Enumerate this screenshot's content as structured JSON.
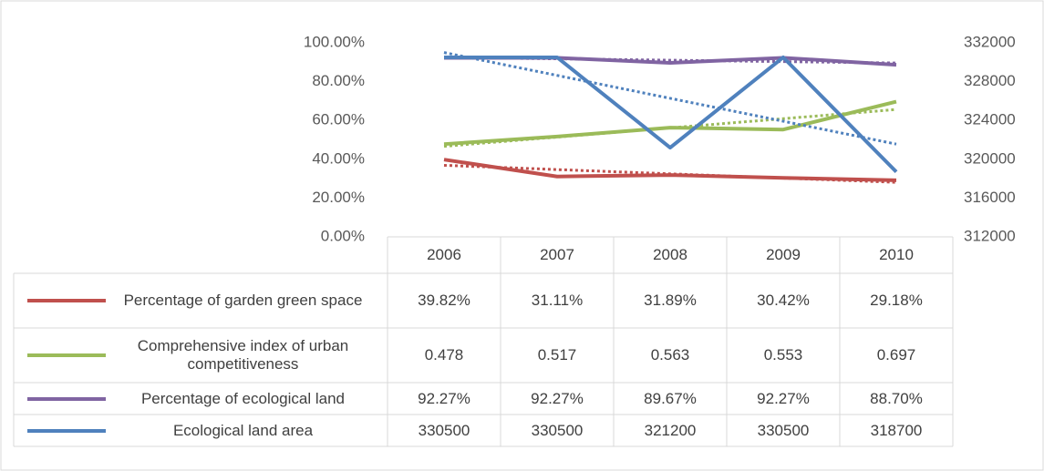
{
  "chart_data": {
    "type": "line",
    "categories": [
      "2006",
      "2007",
      "2008",
      "2009",
      "2010"
    ],
    "series": [
      {
        "name": "Percentage of garden green space",
        "color": "#c0504d",
        "values": [
          39.82,
          31.11,
          31.89,
          30.42,
          29.18
        ],
        "value_labels": [
          "39.82%",
          "31.11%",
          "31.89%",
          "30.42%",
          "29.18%"
        ]
      },
      {
        "name": "Comprehensive index of urban competitiveness",
        "color": "#9bbb59",
        "values": [
          47.8,
          51.7,
          56.3,
          55.3,
          69.7
        ],
        "value_labels": [
          "0.478",
          "0.517",
          "0.563",
          "0.553",
          "0.697"
        ]
      },
      {
        "name": "Percentage of ecological land",
        "color": "#8064a2",
        "values": [
          92.27,
          92.27,
          89.67,
          92.27,
          88.7
        ],
        "value_labels": [
          "92.27%",
          "92.27%",
          "89.67%",
          "92.27%",
          "88.70%"
        ]
      },
      {
        "name": "Ecological land area",
        "color": "#4f81bd",
        "axis": "y2",
        "values": [
          330500,
          330500,
          321200,
          330500,
          318700
        ]
      }
    ],
    "ylim": [
      0,
      100
    ],
    "yticks": [
      {
        "value": 0,
        "label": "0.00%"
      },
      {
        "value": 20,
        "label": "20.00%"
      },
      {
        "value": 40,
        "label": "40.00%"
      },
      {
        "value": 60,
        "label": "60.00%"
      },
      {
        "value": 80,
        "label": "80.00%"
      },
      {
        "value": 100,
        "label": "100.00%"
      }
    ],
    "y2lim": [
      312000,
      332000
    ],
    "y2ticks": [
      312000,
      316000,
      320000,
      324000,
      328000,
      332000
    ],
    "trendline": "linear",
    "data_table": true
  }
}
